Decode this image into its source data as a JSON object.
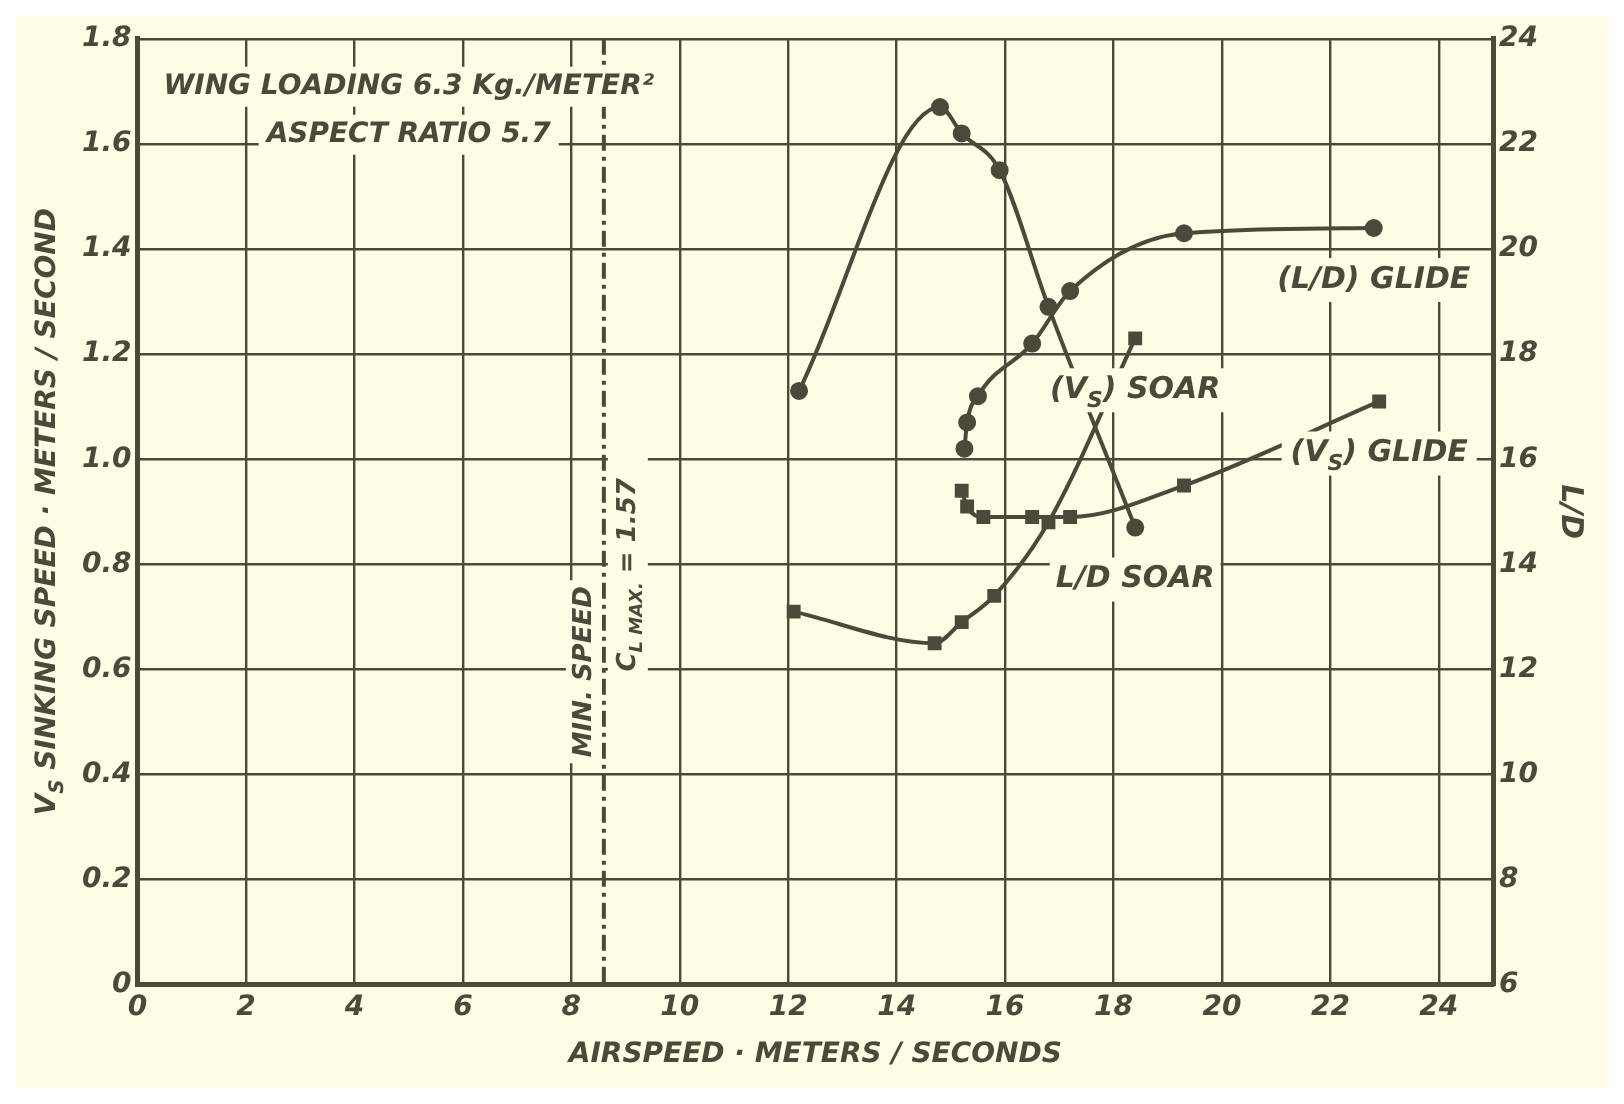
{
  "chart_data": {
    "type": "line",
    "xlabel": "AIRSPEED · METERS / SECONDS",
    "ylabel": "V$_{S}$ SINKING SPEED · METERS / SECOND",
    "y2label": "L/D",
    "xlim": [
      0,
      25
    ],
    "xticks": [
      0,
      2,
      4,
      6,
      8,
      10,
      12,
      14,
      16,
      18,
      20,
      22,
      24
    ],
    "ylim": [
      0,
      1.8
    ],
    "yticks": [
      0,
      0.2,
      0.4,
      0.6,
      0.8,
      {
        "value": 1,
        "label": "1.0"
      },
      1.2,
      1.4,
      1.6,
      1.8
    ],
    "y2lim": [
      6,
      24
    ],
    "y2ticks": [
      6,
      8,
      10,
      12,
      14,
      16,
      18,
      20,
      22,
      24
    ],
    "grid": true,
    "series": [
      {
        "name": "L/D SOAR",
        "color": "#4b4a38",
        "marker": "circle",
        "axis": "y2",
        "x": [
          12.2,
          14.8,
          15.2,
          15.9,
          16.8,
          18.4
        ],
        "values": [
          17.3,
          22.7,
          22.2,
          21.5,
          18.9,
          14.7
        ]
      },
      {
        "name": "(L/D) GLIDE",
        "color": "#4b4a38",
        "marker": "circle",
        "axis": "y2",
        "x": [
          15.25,
          15.3,
          15.5,
          16.5,
          17.2,
          19.3,
          22.8
        ],
        "values": [
          16.2,
          16.7,
          17.2,
          18.2,
          19.2,
          20.3,
          20.4
        ]
      },
      {
        "name": "(V$_{S}$) GLIDE",
        "color": "#4b4a38",
        "marker": "square",
        "x": [
          15.2,
          15.3,
          15.6,
          16.5,
          17.2,
          19.3,
          22.9
        ],
        "values": [
          0.94,
          0.91,
          0.89,
          0.89,
          0.89,
          0.95,
          1.11
        ]
      },
      {
        "name": "(V$_{S}$) SOAR",
        "color": "#4b4a38",
        "marker": "square",
        "x": [
          12.1,
          14.7,
          15.2,
          15.8,
          16.8,
          18.4
        ],
        "values": [
          0.71,
          0.65,
          0.69,
          0.74,
          0.88,
          1.23
        ]
      }
    ],
    "ref_lines": [
      {
        "axis": "x",
        "value": 8.6,
        "label": "MIN. SPEED",
        "line_style": "dashed",
        "color": "#4b4a38"
      }
    ],
    "annotations": [
      "WING LOADING 6.3 Kg./METER²",
      "ASPECT RATIO 5.7",
      {
        "text": "C$_{L MAX.}$ = 1.57",
        "x": 8.6,
        "y": 0.78
      }
    ]
  }
}
